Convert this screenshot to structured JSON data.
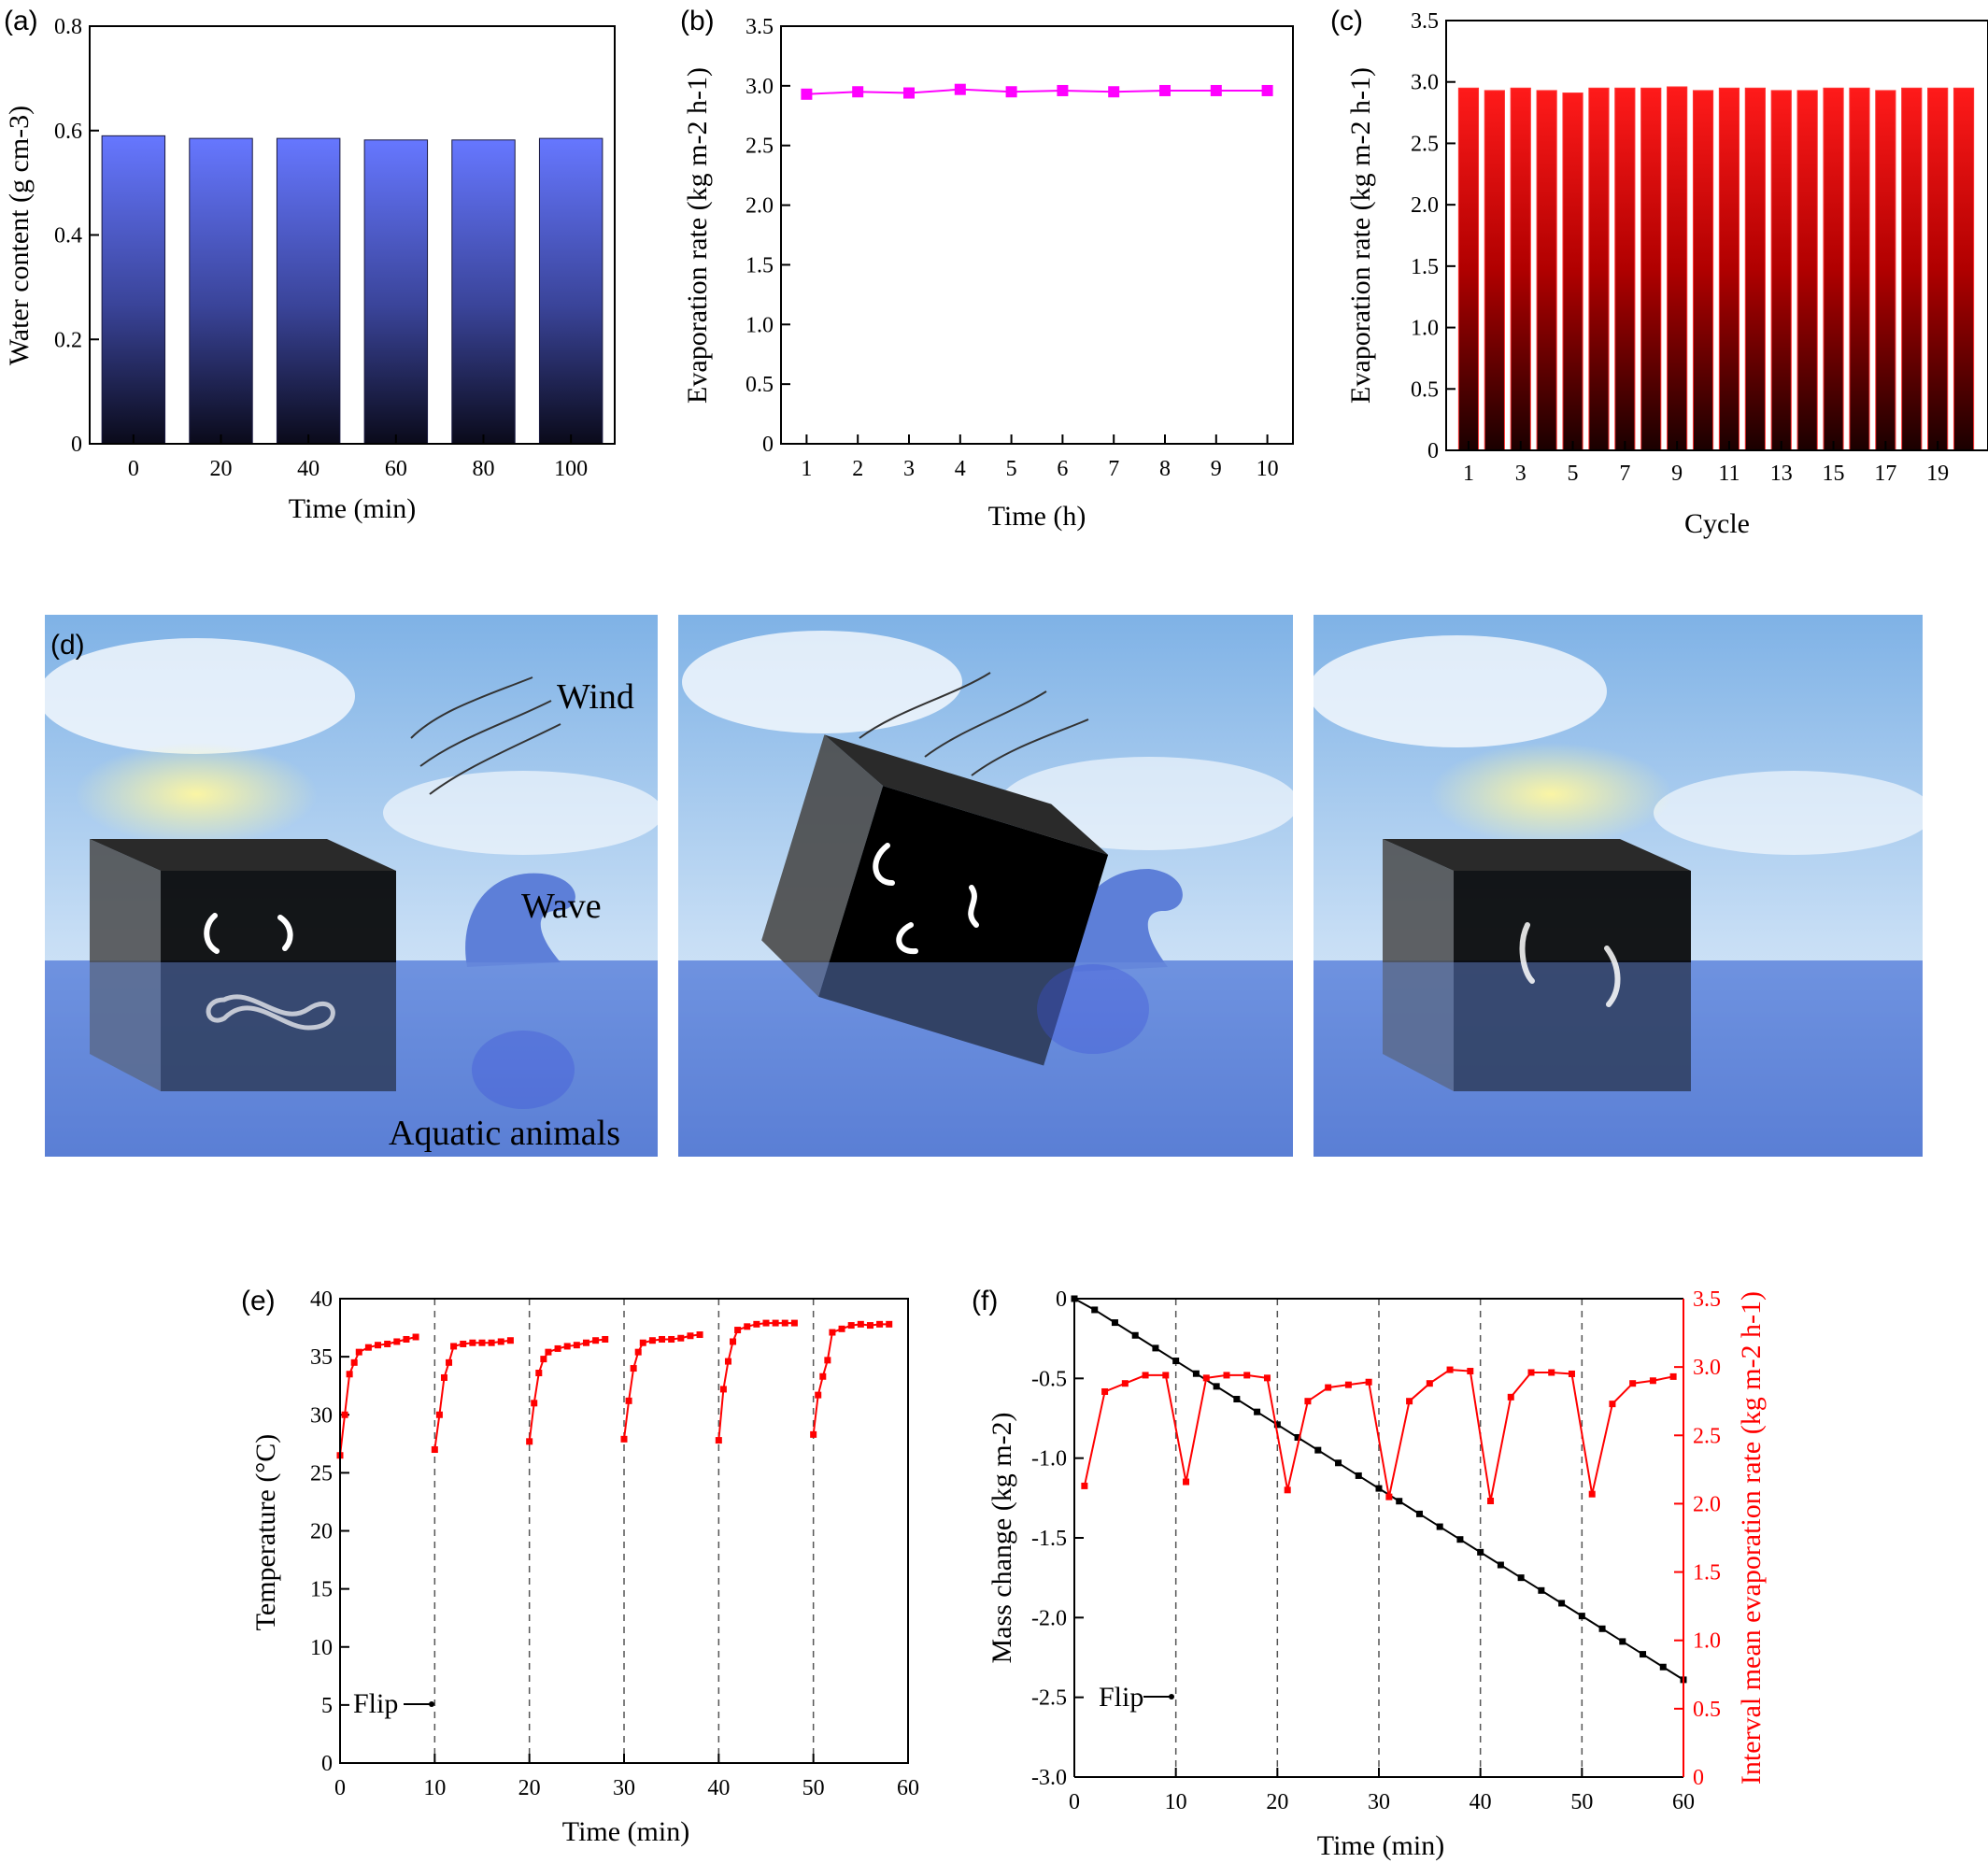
{
  "chart_data": [
    {
      "panel": "(a)",
      "type": "bar",
      "categories": [
        "0",
        "20",
        "40",
        "60",
        "80",
        "100"
      ],
      "values": [
        0.59,
        0.585,
        0.585,
        0.582,
        0.582,
        0.585
      ],
      "xlabel": "Time (min)",
      "ylabel": "Water content (g cm-3)",
      "ylim": [
        0,
        0.8
      ],
      "yticks": [
        "0",
        "0.2",
        "0.4",
        "0.6",
        "0.8"
      ],
      "colors": {
        "bar_top": "#6677ff",
        "bar_bottom": "#0a0a1a"
      }
    },
    {
      "panel": "(b)",
      "type": "line",
      "x": [
        1,
        2,
        3,
        4,
        5,
        6,
        7,
        8,
        9,
        10
      ],
      "y": [
        2.93,
        2.95,
        2.94,
        2.97,
        2.95,
        2.96,
        2.95,
        2.96,
        2.96,
        2.96
      ],
      "xlabel": "Time (h)",
      "ylabel": "Evaporation rate (kg m-2 h-1)",
      "xlim": [
        0.5,
        10.5
      ],
      "ylim": [
        0,
        3.5
      ],
      "xticks": [
        "1",
        "2",
        "3",
        "4",
        "5",
        "6",
        "7",
        "8",
        "9",
        "10"
      ],
      "yticks": [
        "0",
        "0.5",
        "1.0",
        "1.5",
        "2.0",
        "2.5",
        "3.0",
        "3.5"
      ],
      "colors": {
        "series": "#ff00ff"
      }
    },
    {
      "panel": "(c)",
      "type": "bar",
      "categories": [
        "1",
        "2",
        "3",
        "4",
        "5",
        "6",
        "7",
        "8",
        "9",
        "10",
        "11",
        "12",
        "13",
        "14",
        "15",
        "16",
        "17",
        "18",
        "19",
        "20"
      ],
      "values": [
        2.95,
        2.93,
        2.95,
        2.93,
        2.91,
        2.95,
        2.95,
        2.95,
        2.96,
        2.93,
        2.95,
        2.95,
        2.93,
        2.93,
        2.95,
        2.95,
        2.93,
        2.95,
        2.95,
        2.95
      ],
      "xticks": [
        "1",
        "3",
        "5",
        "7",
        "9",
        "11",
        "13",
        "15",
        "17",
        "19"
      ],
      "xlabel": "Cycle",
      "ylabel": "Evaporation rate (kg m-2 h-1)",
      "ylim": [
        0,
        3.5
      ],
      "yticks": [
        "0",
        "0.5",
        "1.0",
        "1.5",
        "2.0",
        "2.5",
        "3.0",
        "3.5"
      ],
      "colors": {
        "bar_top": "#ff1a1a",
        "bar_bottom": "#1a0000"
      }
    },
    {
      "panel": "(d)",
      "type": "illustration",
      "labels": {
        "wind": "Wind",
        "wave": "Wave",
        "aquatic": "Aquatic animals"
      }
    },
    {
      "panel": "(e)",
      "type": "line",
      "series": [
        {
          "x": [
            0,
            0.5,
            1,
            1.5,
            2,
            3,
            4,
            5,
            6,
            7,
            8
          ],
          "y": [
            26.5,
            30,
            33.5,
            34.5,
            35.4,
            35.8,
            36,
            36.1,
            36.3,
            36.5,
            36.7
          ]
        },
        {
          "x": [
            10,
            10.5,
            11,
            11.5,
            12,
            13,
            14,
            15,
            16,
            17,
            18
          ],
          "y": [
            27,
            30,
            33.2,
            34.5,
            35.9,
            36.1,
            36.2,
            36.2,
            36.2,
            36.3,
            36.4
          ]
        },
        {
          "x": [
            20,
            20.5,
            21,
            21.5,
            22,
            23,
            24,
            25,
            26,
            27,
            28
          ],
          "y": [
            27.7,
            31,
            33.6,
            34.8,
            35.4,
            35.7,
            35.9,
            36.0,
            36.2,
            36.4,
            36.5
          ]
        },
        {
          "x": [
            30,
            30.5,
            31,
            31.5,
            32,
            33,
            34,
            35,
            36,
            37,
            38
          ],
          "y": [
            27.9,
            31.2,
            34,
            35.4,
            36.2,
            36.4,
            36.5,
            36.5,
            36.6,
            36.8,
            36.9
          ]
        },
        {
          "x": [
            40,
            40.5,
            41,
            41.5,
            42,
            43,
            44,
            45,
            46,
            47,
            48
          ],
          "y": [
            27.8,
            32.2,
            34.6,
            36.3,
            37.3,
            37.6,
            37.8,
            37.9,
            37.9,
            37.9,
            37.9
          ]
        },
        {
          "x": [
            50,
            50.5,
            51,
            51.5,
            52,
            53,
            54,
            55,
            56,
            57,
            58
          ],
          "y": [
            28.3,
            31.7,
            33.3,
            34.7,
            37.1,
            37.4,
            37.7,
            37.8,
            37.7,
            37.8,
            37.8
          ]
        }
      ],
      "flip_lines": [
        10,
        20,
        30,
        40,
        50
      ],
      "annotation": "Flip",
      "xlabel": "Time (min)",
      "ylabel": "Temperature (°C)",
      "xlim": [
        0,
        60
      ],
      "ylim": [
        0,
        40
      ],
      "xticks": [
        "0",
        "10",
        "20",
        "30",
        "40",
        "50",
        "60"
      ],
      "yticks": [
        "0",
        "5",
        "10",
        "15",
        "20",
        "25",
        "30",
        "35",
        "40"
      ],
      "colors": {
        "series": "#ff0000"
      }
    },
    {
      "panel": "(f)",
      "type": "line",
      "series": [
        {
          "axis": "left",
          "x": [
            0,
            2,
            4,
            6,
            8,
            10,
            12,
            14,
            16,
            18,
            20,
            22,
            24,
            26,
            28,
            30,
            32,
            34,
            36,
            38,
            40,
            42,
            44,
            46,
            48,
            50,
            52,
            54,
            56,
            58,
            60
          ],
          "y": [
            0,
            -0.07,
            -0.15,
            -0.23,
            -0.31,
            -0.39,
            -0.47,
            -0.55,
            -0.63,
            -0.71,
            -0.79,
            -0.87,
            -0.95,
            -1.03,
            -1.11,
            -1.19,
            -1.27,
            -1.35,
            -1.43,
            -1.51,
            -1.59,
            -1.67,
            -1.75,
            -1.83,
            -1.91,
            -1.99,
            -2.07,
            -2.15,
            -2.23,
            -2.31,
            -2.39
          ]
        },
        {
          "axis": "right",
          "x": [
            1,
            3,
            5,
            7,
            9,
            11,
            13,
            15,
            17,
            19,
            21,
            23,
            25,
            27,
            29,
            31,
            33,
            35,
            37,
            39,
            41,
            43,
            45,
            47,
            49,
            51,
            53,
            55,
            57,
            59
          ],
          "y": [
            2.13,
            2.82,
            2.88,
            2.94,
            2.94,
            2.16,
            2.92,
            2.94,
            2.94,
            2.92,
            2.1,
            2.75,
            2.85,
            2.87,
            2.89,
            2.05,
            2.75,
            2.88,
            2.98,
            2.97,
            2.02,
            2.78,
            2.96,
            2.96,
            2.95,
            2.07,
            2.73,
            2.88,
            2.9,
            2.93
          ]
        }
      ],
      "flip_lines": [
        10,
        20,
        30,
        40,
        50
      ],
      "annotation": "Flip",
      "xlabel": "Time (min)",
      "ylabel": "Mass change (kg m-2)",
      "ylabel_right": "Interval mean evaporation rate (kg m-2 h-1)",
      "xlim": [
        0,
        60
      ],
      "ylim": [
        -3.0,
        0
      ],
      "ylim_right": [
        0,
        3.5
      ],
      "xticks": [
        "0",
        "10",
        "20",
        "30",
        "40",
        "50",
        "60"
      ],
      "yticks": [
        "0",
        "-0.5",
        "-1.0",
        "-1.5",
        "-2.0",
        "-2.5",
        "-3.0"
      ],
      "yticks_right": [
        "0",
        "0.5",
        "1.0",
        "1.5",
        "2.0",
        "2.5",
        "3.0",
        "3.5"
      ],
      "colors": {
        "left": "#000000",
        "right": "#ff0000"
      }
    }
  ]
}
